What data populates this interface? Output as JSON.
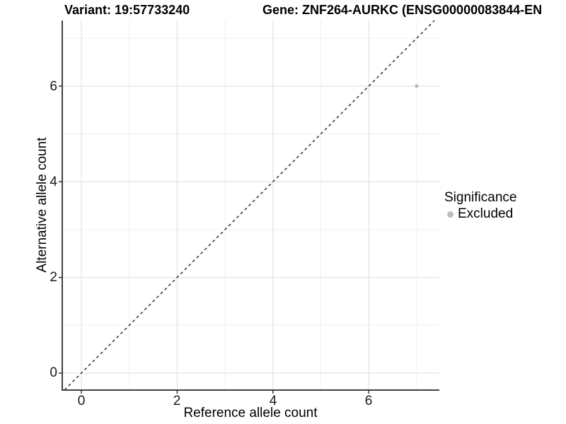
{
  "header": {
    "variant_title": "Variant: 19:57733240",
    "gene_title": "Gene: ZNF264-AURKC (ENSG00000083844-EN",
    "gene_title_truncated": true
  },
  "legend": {
    "title": "Significance",
    "items": [
      {
        "label": "Excluded",
        "color": "#bdbdbd"
      }
    ]
  },
  "chart_data": {
    "type": "scatter",
    "title": "Variant: 19:57733240 / Gene: ZNF264-AURKC (ENSG00000083844-EN...)",
    "xlabel": "Reference allele count",
    "ylabel": "Alternative allele count",
    "xlim": [
      -0.35,
      7.6
    ],
    "ylim": [
      -0.35,
      7.6
    ],
    "x_ticks": [
      0,
      2,
      4,
      6
    ],
    "y_ticks": [
      0,
      2,
      4,
      6
    ],
    "minor_ticks": [
      1,
      3,
      5,
      7
    ],
    "grid": true,
    "legend_position": "right",
    "series": [
      {
        "name": "Excluded",
        "color": "#bdbdbd",
        "points": [
          {
            "x": 7,
            "y": 6
          }
        ]
      }
    ],
    "identity_line": {
      "style": "dashed",
      "color": "#000000",
      "from": [
        -0.35,
        -0.35
      ],
      "to": [
        7.6,
        7.6
      ]
    },
    "colors": {
      "axis_line": "#404040",
      "tick_mark": "#333333",
      "grid_major": "#e4e4e4",
      "grid_minor": "#f0f0f0",
      "background": "#ffffff"
    }
  }
}
